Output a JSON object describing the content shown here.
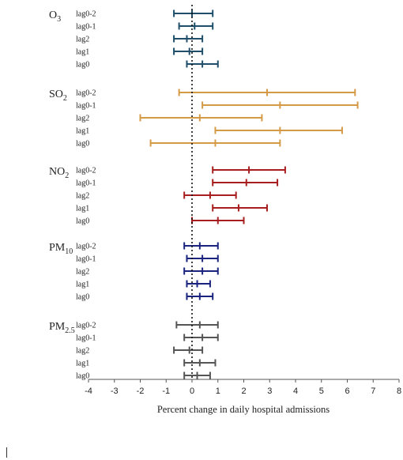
{
  "chart_data": {
    "type": "forest",
    "xlabel": "Percent change in daily hospital admissions",
    "xlim": [
      -4,
      8
    ],
    "x_ticks": [
      "-4",
      "-3",
      "-2",
      "-1",
      "0",
      "1",
      "2",
      "3",
      "4",
      "5",
      "6",
      "7",
      "8"
    ],
    "reference_line": 0,
    "groups": [
      {
        "name": "O3",
        "label_main": "O",
        "label_sub": "3",
        "color": "#1f4e6b",
        "rows": [
          {
            "lag": "lag0-2",
            "estimate": 0.0,
            "lower": -0.7,
            "upper": 0.8
          },
          {
            "lag": "lag0-1",
            "estimate": 0.1,
            "lower": -0.5,
            "upper": 0.8
          },
          {
            "lag": "lag2",
            "estimate": -0.2,
            "lower": -0.7,
            "upper": 0.4
          },
          {
            "lag": "lag1",
            "estimate": -0.1,
            "lower": -0.7,
            "upper": 0.4
          },
          {
            "lag": "lag0",
            "estimate": 0.4,
            "lower": -0.2,
            "upper": 1.0
          }
        ]
      },
      {
        "name": "SO2",
        "label_main": "SO",
        "label_sub": "2",
        "color": "#d59a45",
        "rows": [
          {
            "lag": "lag0-2",
            "estimate": 2.9,
            "lower": -0.5,
            "upper": 6.3
          },
          {
            "lag": "lag0-1",
            "estimate": 3.4,
            "lower": 0.4,
            "upper": 6.4
          },
          {
            "lag": "lag2",
            "estimate": 0.3,
            "lower": -2.0,
            "upper": 2.7
          },
          {
            "lag": "lag1",
            "estimate": 3.4,
            "lower": 0.9,
            "upper": 5.8
          },
          {
            "lag": "lag0",
            "estimate": 0.9,
            "lower": -1.6,
            "upper": 3.4
          }
        ]
      },
      {
        "name": "NO2",
        "label_main": "NO",
        "label_sub": "2",
        "color": "#a81d1d",
        "rows": [
          {
            "lag": "lag0-2",
            "estimate": 2.2,
            "lower": 0.8,
            "upper": 3.6
          },
          {
            "lag": "lag0-1",
            "estimate": 2.1,
            "lower": 0.8,
            "upper": 3.3
          },
          {
            "lag": "lag2",
            "estimate": 0.7,
            "lower": -0.3,
            "upper": 1.7
          },
          {
            "lag": "lag1",
            "estimate": 1.8,
            "lower": 0.8,
            "upper": 2.9
          },
          {
            "lag": "lag0",
            "estimate": 1.0,
            "lower": 0.0,
            "upper": 2.0
          }
        ]
      },
      {
        "name": "PM10",
        "label_main": "PM",
        "label_sub": "10",
        "color": "#1a237e",
        "rows": [
          {
            "lag": "lag0-2",
            "estimate": 0.3,
            "lower": -0.3,
            "upper": 1.0
          },
          {
            "lag": "lag0-1",
            "estimate": 0.4,
            "lower": -0.2,
            "upper": 1.0
          },
          {
            "lag": "lag2",
            "estimate": 0.4,
            "lower": -0.3,
            "upper": 1.0
          },
          {
            "lag": "lag1",
            "estimate": 0.2,
            "lower": -0.2,
            "upper": 0.7
          },
          {
            "lag": "lag0",
            "estimate": 0.3,
            "lower": -0.2,
            "upper": 0.8
          }
        ]
      },
      {
        "name": "PM2.5",
        "label_main": "PM",
        "label_sub": "2.5",
        "color": "#555555",
        "rows": [
          {
            "lag": "lag0-2",
            "estimate": 0.3,
            "lower": -0.6,
            "upper": 1.0
          },
          {
            "lag": "lag0-1",
            "estimate": 0.4,
            "lower": -0.3,
            "upper": 1.0
          },
          {
            "lag": "lag2",
            "estimate": -0.1,
            "lower": -0.7,
            "upper": 0.4
          },
          {
            "lag": "lag1",
            "estimate": 0.3,
            "lower": -0.3,
            "upper": 0.9
          },
          {
            "lag": "lag0",
            "estimate": 0.2,
            "lower": -0.3,
            "upper": 0.7
          }
        ]
      }
    ]
  }
}
